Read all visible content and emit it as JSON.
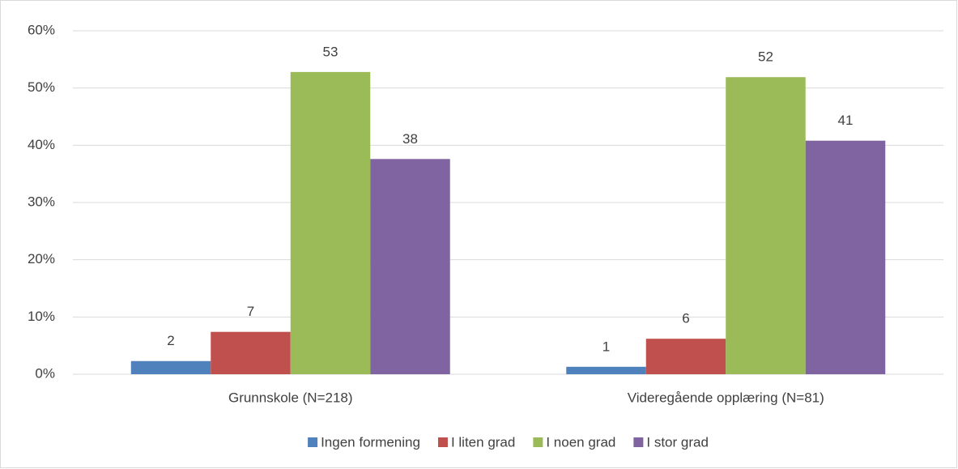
{
  "chart_data": {
    "type": "bar",
    "categories": [
      "Grunnskole (N=218)",
      "Videregående opplæring (N=81)"
    ],
    "series": [
      {
        "name": "Ingen formening",
        "color": "#4f81bd",
        "values": [
          2.3,
          1.3
        ],
        "value_labels": [
          "2",
          "1"
        ]
      },
      {
        "name": "I liten grad",
        "color": "#c0504d",
        "values": [
          7.4,
          6.2
        ],
        "value_labels": [
          "7",
          "6"
        ]
      },
      {
        "name": "I noen grad",
        "color": "#9bbb59",
        "values": [
          52.8,
          51.9
        ],
        "value_labels": [
          "53",
          "52"
        ]
      },
      {
        "name": "I stor grad",
        "color": "#8064a2",
        "values": [
          37.6,
          40.8
        ],
        "value_labels": [
          "38",
          "41"
        ]
      }
    ],
    "ylim": [
      0,
      60
    ],
    "yticks": [
      {
        "value": 0,
        "label": "0%"
      },
      {
        "value": 10,
        "label": "10%"
      },
      {
        "value": 20,
        "label": "20%"
      },
      {
        "value": 30,
        "label": "30%"
      },
      {
        "value": 40,
        "label": "40%"
      },
      {
        "value": 50,
        "label": "50%"
      },
      {
        "value": 60,
        "label": "60%"
      }
    ],
    "grid": true,
    "legend": "bottom"
  }
}
